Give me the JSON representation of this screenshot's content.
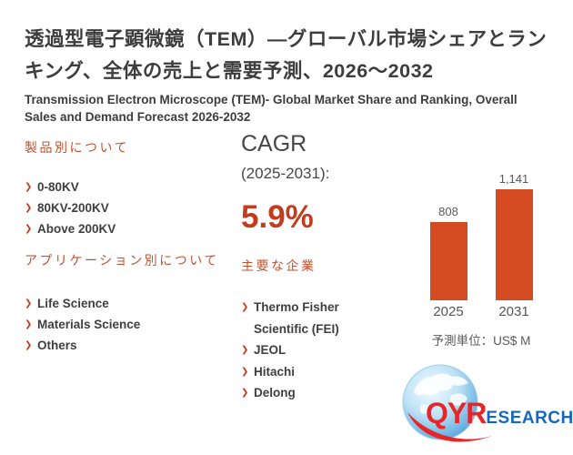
{
  "header": {
    "title_jp": "透過型電子顕微鏡（TEM）—グローバル市場シェアとランキング、全体の売上と需要予測、2026～2032",
    "title_en": "Transmission Electron Microscope (TEM)- Global Market Share and Ranking, Overall Sales and Demand Forecast 2026-2032"
  },
  "products_section": {
    "heading": "製品別について",
    "items": [
      "0-80KV",
      "80KV-200KV",
      "Above 200KV"
    ]
  },
  "applications_section": {
    "heading": "アプリケーション別について",
    "items": [
      "Life Science",
      "Materials Science",
      "Others"
    ]
  },
  "cagr_section": {
    "label": "CAGR",
    "period": "(2025-2031):",
    "value": "5.9%"
  },
  "companies_section": {
    "heading": "主要な企業",
    "items": [
      "Thermo Fisher Scientific (FEI)",
      "JEOL",
      "Hitachi",
      "Delong"
    ]
  },
  "chart_data": {
    "type": "bar",
    "title": "",
    "xlabel": "",
    "ylabel": "",
    "categories": [
      "2025",
      "2031"
    ],
    "values": [
      808,
      1141
    ],
    "value_labels": [
      "808",
      "1,141"
    ],
    "unit_caption": "予測単位：US$ M",
    "ylim": [
      0,
      1200
    ],
    "grid": false,
    "legend": false,
    "bar_color": "#d54b21"
  },
  "logo": {
    "text_red": "QYR",
    "text_blue": "ESEARCH"
  },
  "colors": {
    "accent_red": "#c23d1e",
    "section_heading_orange": "#c0532f",
    "bar_orange": "#d54b21",
    "text_dark": "#3d3d3d",
    "text_gray": "#595959",
    "logo_red": "#e8262a",
    "logo_blue": "#1668be"
  }
}
